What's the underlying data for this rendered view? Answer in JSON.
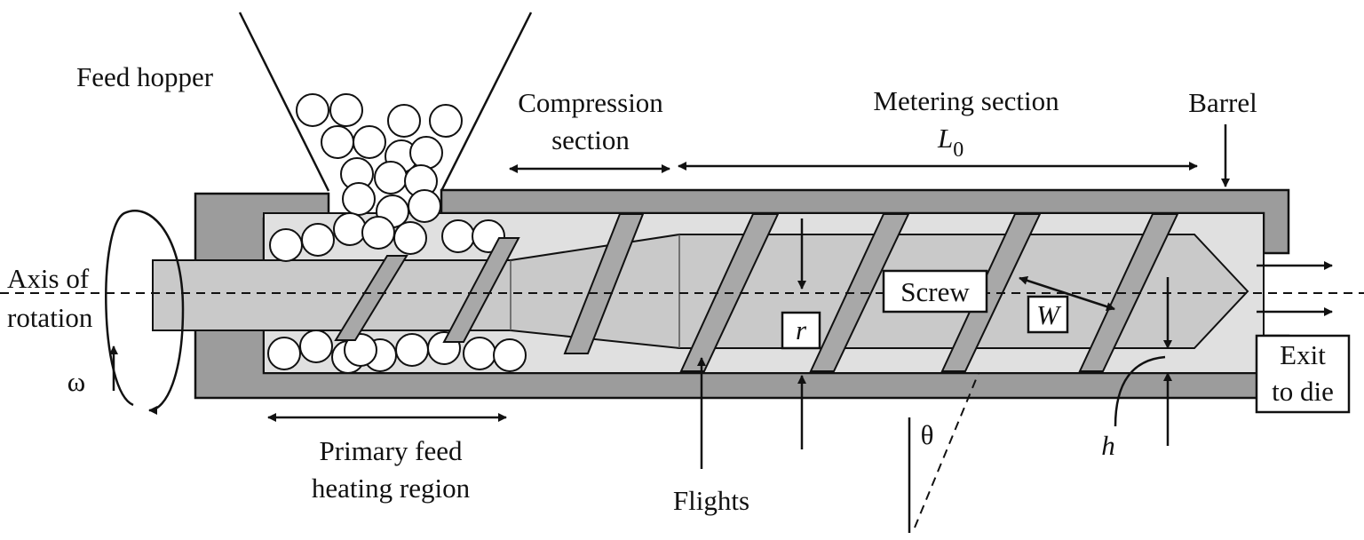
{
  "labels": {
    "feed_hopper": "Feed hopper",
    "compression_1": "Compression",
    "compression_2": "section",
    "metering": "Metering section",
    "length_symbol": "L",
    "length_subscript": "0",
    "barrel": "Barrel",
    "axis_1": "Axis of",
    "axis_2": "rotation",
    "omega": "ω",
    "screw": "Screw",
    "width_symbol": "W",
    "radius_symbol": "r",
    "exit_1": "Exit",
    "exit_2": "to die",
    "primary_1": "Primary feed",
    "primary_2": "heating region",
    "flights": "Flights",
    "theta": "θ",
    "height_symbol": "h"
  }
}
